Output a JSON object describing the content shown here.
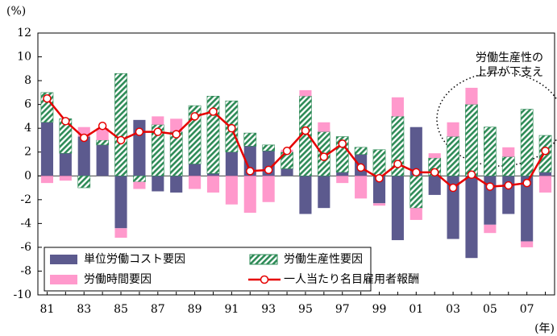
{
  "chart_data": {
    "type": "bar-line",
    "y_unit_label": "(%)",
    "x_unit_label": "(年)",
    "annotation": [
      "労働生産性の",
      "上昇が下支え"
    ],
    "categories": [
      "81",
      null,
      "83",
      null,
      "85",
      null,
      "87",
      null,
      "89",
      null,
      "91",
      null,
      "93",
      null,
      "95",
      null,
      "97",
      null,
      "99",
      null,
      "01",
      null,
      "03",
      null,
      "05",
      null,
      "07",
      null
    ],
    "series": [
      {
        "name": "単位労働コスト要因",
        "kind": "bar",
        "color": "#5c5a8e",
        "hatch": false,
        "values": [
          4.5,
          1.9,
          3.3,
          2.6,
          -4.4,
          4.7,
          -1.3,
          -1.4,
          1.0,
          0.2,
          2.0,
          2.5,
          2.1,
          0.6,
          -3.2,
          -2.7,
          0.3,
          1.8,
          -2.3,
          -5.4,
          4.1,
          -1.6,
          -5.3,
          -6.9,
          -4.1,
          -3.2,
          -5.5,
          0.3
        ]
      },
      {
        "name": "労働生産性要因",
        "kind": "bar",
        "color": "#2e8b57",
        "hatch": true,
        "values": [
          2.5,
          2.9,
          -1.0,
          0.4,
          8.6,
          -0.5,
          4.3,
          3.7,
          4.9,
          6.5,
          4.3,
          1.1,
          0.5,
          1.4,
          6.7,
          3.7,
          3.0,
          0.6,
          2.2,
          5.0,
          -2.7,
          1.5,
          3.3,
          6.0,
          4.1,
          1.6,
          5.6,
          3.1
        ]
      },
      {
        "name": "労働時間要因",
        "kind": "bar",
        "color": "#ff99cc",
        "hatch": false,
        "values": [
          -0.6,
          -0.4,
          0.8,
          1.0,
          -0.8,
          -0.6,
          0.7,
          1.1,
          -1.1,
          -1.4,
          -2.4,
          -3.1,
          -2.2,
          0.2,
          0.5,
          0.8,
          -0.6,
          -1.9,
          -0.2,
          1.6,
          -1.0,
          0.4,
          1.2,
          1.4,
          -0.7,
          0.8,
          -0.5,
          -1.4
        ]
      },
      {
        "name": "一人当たり名目雇用者報酬",
        "kind": "line",
        "color": "#e60000",
        "hatch": false,
        "values": [
          6.5,
          4.6,
          3.2,
          4.2,
          3.0,
          3.7,
          3.7,
          3.5,
          5.0,
          5.4,
          4.0,
          0.4,
          0.5,
          2.1,
          3.8,
          1.6,
          2.7,
          0.7,
          -0.2,
          1.0,
          0.3,
          0.3,
          -1.0,
          0.1,
          -0.9,
          -0.8,
          -0.6,
          2.1
        ]
      }
    ],
    "ylim": [
      -10,
      12
    ],
    "yticks": [
      -10,
      -8,
      -6,
      -4,
      -2,
      0,
      2,
      4,
      6,
      8,
      10,
      12
    ],
    "grid": false
  }
}
